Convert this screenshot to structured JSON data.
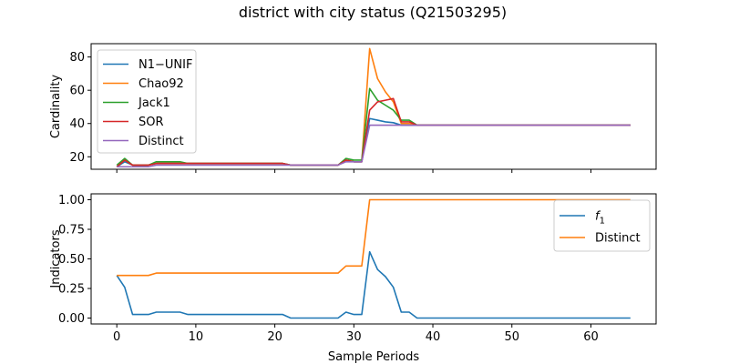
{
  "figure_title": "district with city status (Q21503295)",
  "chart_data": [
    {
      "type": "line",
      "title": "",
      "xlabel": "",
      "ylabel": "Cardinality",
      "xlim": [
        -3.25,
        68.25
      ],
      "ylim": [
        12.5,
        88.0
      ],
      "xticks": [
        0,
        10,
        20,
        30,
        40,
        50,
        60
      ],
      "yticks": [
        20,
        40,
        60,
        80
      ],
      "show_x_tick_labels": false,
      "grid": false,
      "legend_position": "upper-left",
      "x": [
        0,
        1,
        2,
        3,
        4,
        5,
        6,
        7,
        8,
        9,
        10,
        11,
        12,
        13,
        14,
        15,
        16,
        17,
        18,
        19,
        20,
        21,
        22,
        23,
        24,
        25,
        26,
        27,
        28,
        29,
        30,
        31,
        32,
        33,
        34,
        35,
        36,
        37,
        38,
        39,
        40,
        41,
        42,
        43,
        44,
        45,
        46,
        47,
        48,
        49,
        50,
        51,
        52,
        53,
        54,
        55,
        56,
        57,
        58,
        59,
        60,
        61,
        62,
        63,
        64,
        65
      ],
      "series": [
        {
          "name": "N1−UNIF",
          "color": "#1f77b4",
          "values": [
            14,
            17,
            15,
            15,
            15,
            16,
            16,
            16,
            16,
            16,
            16,
            16,
            16,
            16,
            16,
            16,
            16,
            16,
            16,
            16,
            16,
            16,
            15,
            15,
            15,
            15,
            15,
            15,
            15,
            18,
            17,
            17,
            43,
            42,
            41,
            40.5,
            39,
            39,
            39,
            39,
            39,
            39,
            39,
            39,
            39,
            39,
            39,
            39,
            39,
            39,
            39,
            39,
            39,
            39,
            39,
            39,
            39,
            39,
            39,
            39,
            39,
            39,
            39,
            39,
            39,
            39
          ]
        },
        {
          "name": "Chao92",
          "color": "#ff7f0e",
          "values": [
            14,
            18,
            15,
            15,
            15,
            16,
            16,
            16,
            16,
            16,
            16,
            16,
            16,
            16,
            16,
            16,
            16,
            16,
            16,
            16,
            16,
            16,
            15,
            15,
            15,
            15,
            15,
            15,
            15,
            18,
            17,
            17,
            85,
            67,
            59,
            53,
            40,
            40,
            39,
            39,
            39,
            39,
            39,
            39,
            39,
            39,
            39,
            39,
            39,
            39,
            39,
            39,
            39,
            39,
            39,
            39,
            39,
            39,
            39,
            39,
            39,
            39,
            39,
            39,
            39,
            39
          ]
        },
        {
          "name": "Jack1",
          "color": "#2ca02c",
          "values": [
            15,
            19,
            15,
            15,
            15,
            17,
            17,
            17,
            17,
            16,
            16,
            16,
            16,
            16,
            16,
            16,
            16,
            16,
            16,
            16,
            16,
            16,
            15,
            15,
            15,
            15,
            15,
            15,
            15,
            19,
            18,
            18,
            61,
            54,
            51,
            48,
            42,
            42,
            39,
            39,
            39,
            39,
            39,
            39,
            39,
            39,
            39,
            39,
            39,
            39,
            39,
            39,
            39,
            39,
            39,
            39,
            39,
            39,
            39,
            39,
            39,
            39,
            39,
            39,
            39,
            39
          ]
        },
        {
          "name": "SOR",
          "color": "#d62728",
          "values": [
            14,
            18,
            15,
            15,
            15,
            16,
            16,
            16,
            16,
            16,
            16,
            16,
            16,
            16,
            16,
            16,
            16,
            16,
            16,
            16,
            16,
            16,
            15,
            15,
            15,
            15,
            15,
            15,
            15,
            18,
            17,
            17,
            48,
            53,
            54,
            55,
            41,
            41,
            39,
            39,
            39,
            39,
            39,
            39,
            39,
            39,
            39,
            39,
            39,
            39,
            39,
            39,
            39,
            39,
            39,
            39,
            39,
            39,
            39,
            39,
            39,
            39,
            39,
            39,
            39,
            39
          ]
        },
        {
          "name": "Distinct",
          "color": "#9467bd",
          "values": [
            14,
            14,
            14,
            14,
            14,
            15,
            15,
            15,
            15,
            15,
            15,
            15,
            15,
            15,
            15,
            15,
            15,
            15,
            15,
            15,
            15,
            15,
            15,
            15,
            15,
            15,
            15,
            15,
            15,
            17,
            17,
            17,
            39,
            39,
            39,
            39,
            39,
            39,
            39,
            39,
            39,
            39,
            39,
            39,
            39,
            39,
            39,
            39,
            39,
            39,
            39,
            39,
            39,
            39,
            39,
            39,
            39,
            39,
            39,
            39,
            39,
            39,
            39,
            39,
            39,
            39
          ]
        }
      ]
    },
    {
      "type": "line",
      "title": "",
      "xlabel": "Sample Periods",
      "ylabel": "Indicators",
      "xlim": [
        -3.25,
        68.25
      ],
      "ylim": [
        -0.05,
        1.05
      ],
      "xticks": [
        0,
        10,
        20,
        30,
        40,
        50,
        60
      ],
      "yticks": [
        0.0,
        0.25,
        0.5,
        0.75,
        1.0
      ],
      "ytick_labels": [
        "0.00",
        "0.25",
        "0.50",
        "0.75",
        "1.00"
      ],
      "show_x_tick_labels": true,
      "grid": false,
      "legend_position": "upper-right",
      "x": [
        0,
        1,
        2,
        3,
        4,
        5,
        6,
        7,
        8,
        9,
        10,
        11,
        12,
        13,
        14,
        15,
        16,
        17,
        18,
        19,
        20,
        21,
        22,
        23,
        24,
        25,
        26,
        27,
        28,
        29,
        30,
        31,
        32,
        33,
        34,
        35,
        36,
        37,
        38,
        39,
        40,
        41,
        42,
        43,
        44,
        45,
        46,
        47,
        48,
        49,
        50,
        51,
        52,
        53,
        54,
        55,
        56,
        57,
        58,
        59,
        60,
        61,
        62,
        63,
        64,
        65
      ],
      "series": [
        {
          "name": "f",
          "name_subscript": "1",
          "color": "#1f77b4",
          "values": [
            0.36,
            0.26,
            0.03,
            0.03,
            0.03,
            0.05,
            0.05,
            0.05,
            0.05,
            0.03,
            0.03,
            0.03,
            0.03,
            0.03,
            0.03,
            0.03,
            0.03,
            0.03,
            0.03,
            0.03,
            0.03,
            0.03,
            0.0,
            0.0,
            0.0,
            0.0,
            0.0,
            0.0,
            0.0,
            0.05,
            0.03,
            0.03,
            0.56,
            0.41,
            0.35,
            0.26,
            0.05,
            0.05,
            0.0,
            0.0,
            0.0,
            0.0,
            0.0,
            0.0,
            0.0,
            0.0,
            0.0,
            0.0,
            0.0,
            0.0,
            0.0,
            0.0,
            0.0,
            0.0,
            0.0,
            0.0,
            0.0,
            0.0,
            0.0,
            0.0,
            0.0,
            0.0,
            0.0,
            0.0,
            0.0,
            0.0
          ]
        },
        {
          "name": "Distinct",
          "color": "#ff7f0e",
          "values": [
            0.36,
            0.36,
            0.36,
            0.36,
            0.36,
            0.38,
            0.38,
            0.38,
            0.38,
            0.38,
            0.38,
            0.38,
            0.38,
            0.38,
            0.38,
            0.38,
            0.38,
            0.38,
            0.38,
            0.38,
            0.38,
            0.38,
            0.38,
            0.38,
            0.38,
            0.38,
            0.38,
            0.38,
            0.38,
            0.44,
            0.44,
            0.44,
            1.0,
            1.0,
            1.0,
            1.0,
            1.0,
            1.0,
            1.0,
            1.0,
            1.0,
            1.0,
            1.0,
            1.0,
            1.0,
            1.0,
            1.0,
            1.0,
            1.0,
            1.0,
            1.0,
            1.0,
            1.0,
            1.0,
            1.0,
            1.0,
            1.0,
            1.0,
            1.0,
            1.0,
            1.0,
            1.0,
            1.0,
            1.0,
            1.0,
            1.0
          ]
        }
      ]
    }
  ]
}
